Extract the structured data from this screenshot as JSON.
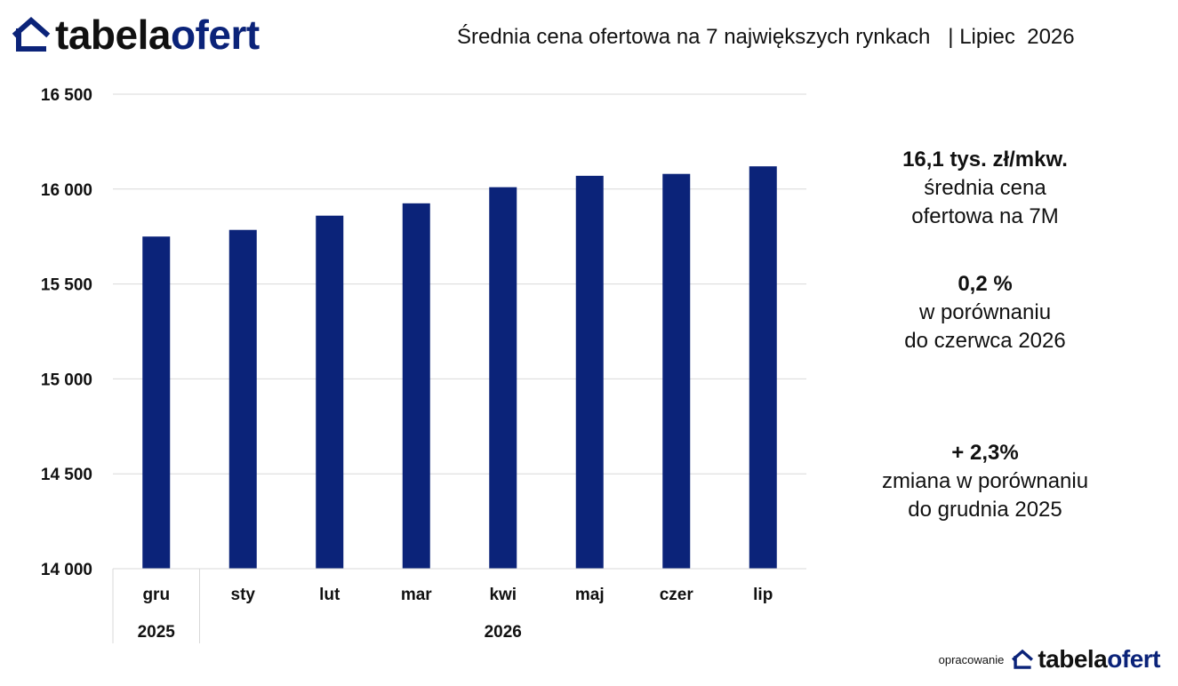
{
  "brand": {
    "part1": "tabela",
    "part2": "ofert",
    "icon": "house-outline-icon",
    "color": "#0b2379"
  },
  "header": {
    "title": "Średnia cena ofertowa na 7 największych rynkach   | Lipiec  2026"
  },
  "side": {
    "stat1": {
      "value": "16,1 tys. zł/mkw.",
      "line1": "średnia cena",
      "line2": "ofertowa na 7M"
    },
    "stat2": {
      "value": "0,2 %",
      "line1": "w porównaniu",
      "line2": "do czerwca 2026"
    },
    "stat3": {
      "value": "+ 2,3%",
      "line1": "zmiana w porównaniu",
      "line2": "do grudnia 2025"
    }
  },
  "footer": {
    "prefix": "opracowanie"
  },
  "chart_data": {
    "type": "bar",
    "categories": [
      "gru",
      "sty",
      "lut",
      "mar",
      "kwi",
      "maj",
      "czer",
      "lip"
    ],
    "year_groups": [
      {
        "label": "2025",
        "span": 1
      },
      {
        "label": "2026",
        "span": 7
      }
    ],
    "values": [
      15750,
      15785,
      15860,
      15925,
      16010,
      16070,
      16080,
      16120
    ],
    "ylim": [
      14000,
      16500
    ],
    "yticks": [
      14000,
      14500,
      15000,
      15500,
      16000,
      16500
    ],
    "ytick_labels": [
      "14 000",
      "14 500",
      "15 000",
      "15 500",
      "16 000",
      "16 500"
    ],
    "bar_color": "#0b2379",
    "grid": true
  }
}
